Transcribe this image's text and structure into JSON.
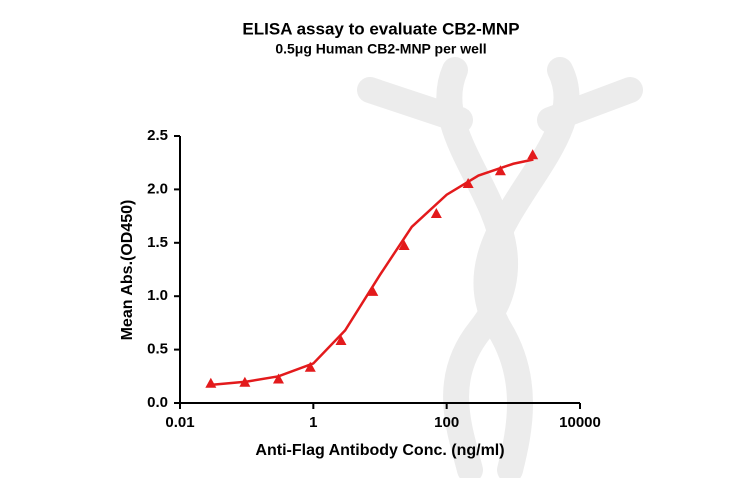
{
  "chart_data": {
    "type": "scatter",
    "title": "ELISA assay to evaluate CB2-MNP",
    "subtitle": "0.5μg Human CB2-MNP per well",
    "x_label": "Anti-Flag Antibody Conc. (ng/ml)",
    "y_label": "Mean Abs.(OD450)",
    "xlog": true,
    "xlim": [
      0.01,
      10000
    ],
    "xticks": [
      0.01,
      1,
      100,
      10000
    ],
    "ylim": [
      0,
      2.5
    ],
    "yticks": [
      {
        "value": 0,
        "label": "0.0"
      },
      {
        "value": 0.5,
        "label": "0.5"
      },
      {
        "value": 1,
        "label": "1.0"
      },
      {
        "value": 1.5,
        "label": "1.5"
      },
      {
        "value": 2,
        "label": "2.0"
      },
      {
        "value": 2.5,
        "label": "2.5"
      }
    ],
    "series": [
      {
        "marker": "triangle",
        "color": "#e31a1c",
        "x": [
          0.029,
          0.094,
          0.3,
          0.9,
          2.6,
          7.8,
          23,
          70,
          210,
          640,
          1950
        ],
        "values": [
          0.18,
          0.19,
          0.22,
          0.33,
          0.58,
          1.04,
          1.47,
          1.77,
          2.05,
          2.17,
          2.32
        ]
      },
      {
        "marker": "line",
        "color": "#e31a1c",
        "x": [
          0.029,
          0.1,
          0.3,
          1,
          3,
          10,
          30,
          100,
          300,
          1000,
          2000
        ],
        "values": [
          0.17,
          0.2,
          0.25,
          0.37,
          0.68,
          1.2,
          1.65,
          1.95,
          2.13,
          2.24,
          2.28
        ]
      }
    ]
  }
}
